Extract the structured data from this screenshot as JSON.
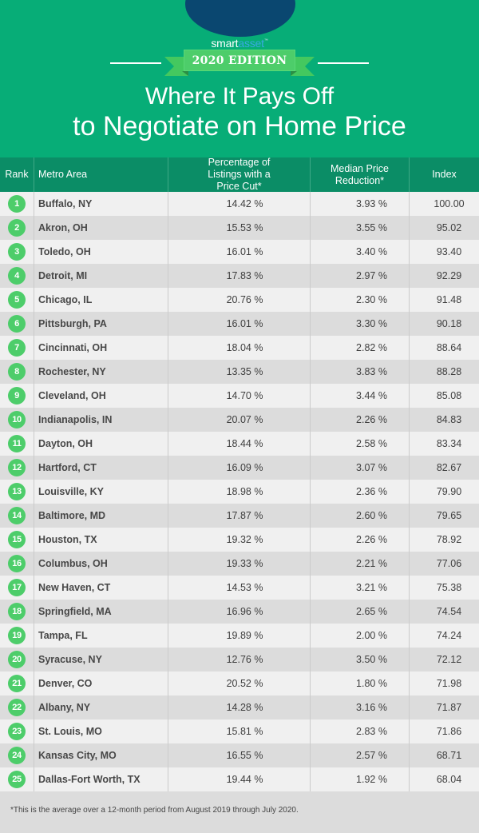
{
  "brand": {
    "logo_part1": "smart",
    "logo_part2": "asset",
    "logo_tm": "™",
    "colors": {
      "header_bg": "#07ad77",
      "table_header_bg": "#0b8d66",
      "badge": "#4dcd6a",
      "logo_oval": "#0a4770"
    }
  },
  "edition": "2020 EDITION",
  "title": {
    "line1": "Where It Pays Off",
    "line2": "to Negotiate on Home Price"
  },
  "table": {
    "columns": [
      "Rank",
      "Metro Area",
      "Percentage of Listings with a Price Cut*",
      "Median Price Reduction*",
      "Index"
    ],
    "rows": [
      {
        "rank": "1",
        "metro": "Buffalo, NY",
        "pct": "14.42 %",
        "med": "3.93 %",
        "index": "100.00"
      },
      {
        "rank": "2",
        "metro": "Akron, OH",
        "pct": "15.53 %",
        "med": "3.55 %",
        "index": "95.02"
      },
      {
        "rank": "3",
        "metro": "Toledo, OH",
        "pct": "16.01 %",
        "med": "3.40 %",
        "index": "93.40"
      },
      {
        "rank": "4",
        "metro": "Detroit, MI",
        "pct": "17.83 %",
        "med": "2.97 %",
        "index": "92.29"
      },
      {
        "rank": "5",
        "metro": "Chicago, IL",
        "pct": "20.76 %",
        "med": "2.30 %",
        "index": "91.48"
      },
      {
        "rank": "6",
        "metro": "Pittsburgh, PA",
        "pct": "16.01 %",
        "med": "3.30 %",
        "index": "90.18"
      },
      {
        "rank": "7",
        "metro": "Cincinnati, OH",
        "pct": "18.04 %",
        "med": "2.82 %",
        "index": "88.64"
      },
      {
        "rank": "8",
        "metro": "Rochester, NY",
        "pct": "13.35 %",
        "med": "3.83 %",
        "index": "88.28"
      },
      {
        "rank": "9",
        "metro": "Cleveland, OH",
        "pct": "14.70 %",
        "med": "3.44 %",
        "index": "85.08"
      },
      {
        "rank": "10",
        "metro": "Indianapolis, IN",
        "pct": "20.07 %",
        "med": "2.26 %",
        "index": "84.83"
      },
      {
        "rank": "11",
        "metro": "Dayton, OH",
        "pct": "18.44 %",
        "med": "2.58 %",
        "index": "83.34"
      },
      {
        "rank": "12",
        "metro": "Hartford, CT",
        "pct": "16.09 %",
        "med": "3.07 %",
        "index": "82.67"
      },
      {
        "rank": "13",
        "metro": "Louisville, KY",
        "pct": "18.98 %",
        "med": "2.36 %",
        "index": "79.90"
      },
      {
        "rank": "14",
        "metro": "Baltimore, MD",
        "pct": "17.87 %",
        "med": "2.60 %",
        "index": "79.65"
      },
      {
        "rank": "15",
        "metro": "Houston, TX",
        "pct": "19.32 %",
        "med": "2.26 %",
        "index": "78.92"
      },
      {
        "rank": "16",
        "metro": "Columbus, OH",
        "pct": "19.33 %",
        "med": "2.21 %",
        "index": "77.06"
      },
      {
        "rank": "17",
        "metro": "New Haven, CT",
        "pct": "14.53 %",
        "med": "3.21 %",
        "index": "75.38"
      },
      {
        "rank": "18",
        "metro": "Springfield, MA",
        "pct": "16.96 %",
        "med": "2.65 %",
        "index": "74.54"
      },
      {
        "rank": "19",
        "metro": "Tampa, FL",
        "pct": "19.89 %",
        "med": "2.00 %",
        "index": "74.24"
      },
      {
        "rank": "20",
        "metro": "Syracuse, NY",
        "pct": "12.76 %",
        "med": "3.50 %",
        "index": "72.12"
      },
      {
        "rank": "21",
        "metro": "Denver, CO",
        "pct": "20.52 %",
        "med": "1.80 %",
        "index": "71.98"
      },
      {
        "rank": "22",
        "metro": "Albany, NY",
        "pct": "14.28 %",
        "med": "3.16 %",
        "index": "71.87"
      },
      {
        "rank": "23",
        "metro": "St. Louis, MO",
        "pct": "15.81 %",
        "med": "2.83 %",
        "index": "71.86"
      },
      {
        "rank": "24",
        "metro": "Kansas City, MO",
        "pct": "16.55 %",
        "med": "2.57 %",
        "index": "68.71"
      },
      {
        "rank": "25",
        "metro": "Dallas-Fort Worth, TX",
        "pct": "19.44 %",
        "med": "1.92 %",
        "index": "68.04"
      }
    ]
  },
  "footnote": "*This is the average over a 12-month period from August 2019 through July 2020.",
  "chart_data": {
    "type": "table",
    "title": "Where It Pays Off to Negotiate on Home Price",
    "subtitle": "2020 Edition",
    "columns": [
      "Rank",
      "Metro Area",
      "Percentage of Listings with a Price Cut*",
      "Median Price Reduction*",
      "Index"
    ],
    "categories": [
      "Buffalo, NY",
      "Akron, OH",
      "Toledo, OH",
      "Detroit, MI",
      "Chicago, IL",
      "Pittsburgh, PA",
      "Cincinnati, OH",
      "Rochester, NY",
      "Cleveland, OH",
      "Indianapolis, IN",
      "Dayton, OH",
      "Hartford, CT",
      "Louisville, KY",
      "Baltimore, MD",
      "Houston, TX",
      "Columbus, OH",
      "New Haven, CT",
      "Springfield, MA",
      "Tampa, FL",
      "Syracuse, NY",
      "Denver, CO",
      "Albany, NY",
      "St. Louis, MO",
      "Kansas City, MO",
      "Dallas-Fort Worth, TX"
    ],
    "series": [
      {
        "name": "Percentage of Listings with a Price Cut (%)",
        "values": [
          14.42,
          15.53,
          16.01,
          17.83,
          20.76,
          16.01,
          18.04,
          13.35,
          14.7,
          20.07,
          18.44,
          16.09,
          18.98,
          17.87,
          19.32,
          19.33,
          14.53,
          16.96,
          19.89,
          12.76,
          20.52,
          14.28,
          15.81,
          16.55,
          19.44
        ]
      },
      {
        "name": "Median Price Reduction (%)",
        "values": [
          3.93,
          3.55,
          3.4,
          2.97,
          2.3,
          3.3,
          2.82,
          3.83,
          3.44,
          2.26,
          2.58,
          3.07,
          2.36,
          2.6,
          2.26,
          2.21,
          3.21,
          2.65,
          2.0,
          3.5,
          1.8,
          3.16,
          2.83,
          2.57,
          1.92
        ]
      },
      {
        "name": "Index",
        "values": [
          100.0,
          95.02,
          93.4,
          92.29,
          91.48,
          90.18,
          88.64,
          88.28,
          85.08,
          84.83,
          83.34,
          82.67,
          79.9,
          79.65,
          78.92,
          77.06,
          75.38,
          74.54,
          74.24,
          72.12,
          71.98,
          71.87,
          71.86,
          68.71,
          68.04
        ]
      }
    ],
    "annotations": [
      "*This is the average over a 12-month period from August 2019 through July 2020."
    ]
  }
}
